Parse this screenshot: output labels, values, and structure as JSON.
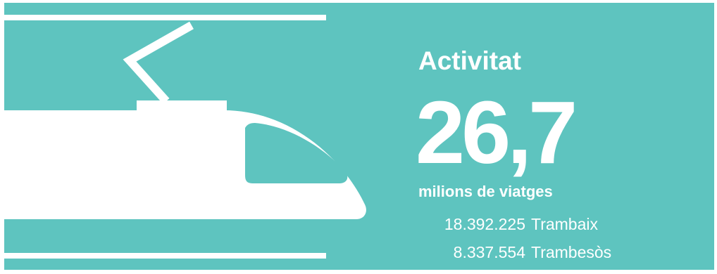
{
  "title": "Activitat",
  "headline_value": "26,7",
  "headline_unit": "milions de viatges",
  "breakdown": [
    {
      "value": "18.392.225",
      "label": "Trambaix"
    },
    {
      "value": "8.337.554",
      "label": "Trambesòs"
    }
  ],
  "colors": {
    "background": "#5ec4bf",
    "foreground": "#ffffff",
    "border": "#ffffff"
  },
  "icons": {
    "illustration": "tram-icon"
  }
}
